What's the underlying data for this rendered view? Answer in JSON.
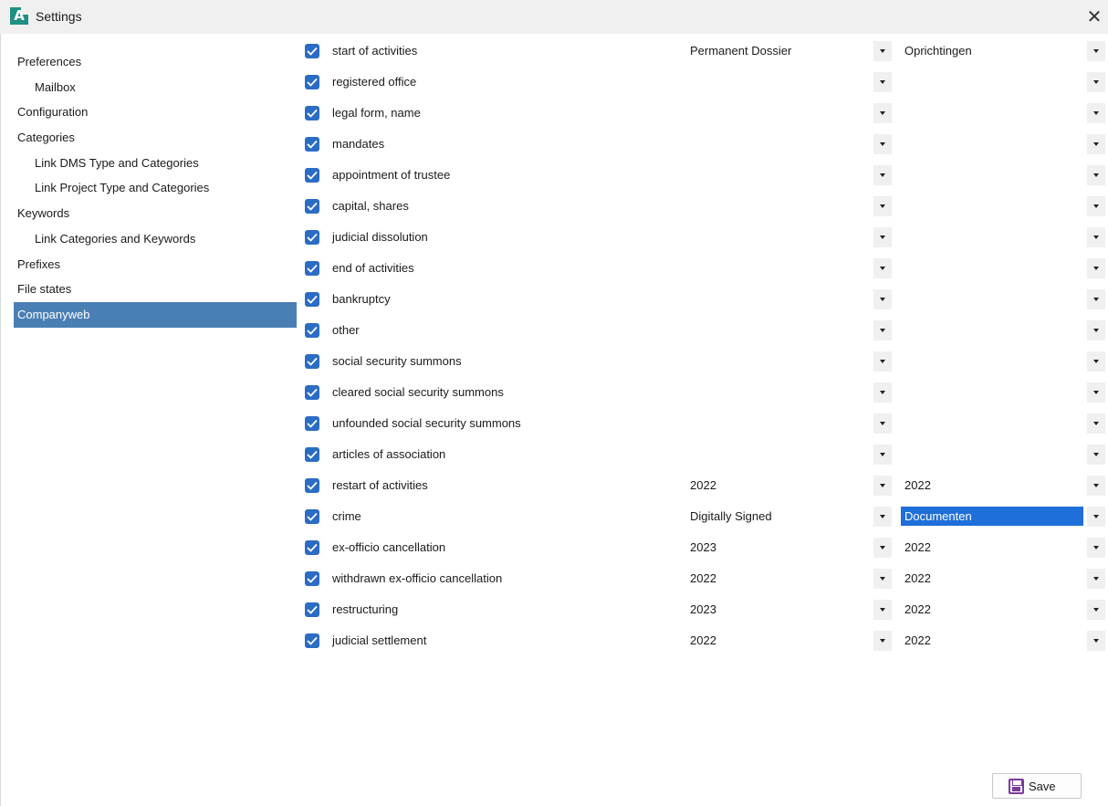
{
  "window": {
    "title": "Settings",
    "app_icon": "A",
    "close_glyph": "✕"
  },
  "sidebar": {
    "items": [
      {
        "label": "Preferences",
        "level": 0,
        "active": false
      },
      {
        "label": "Mailbox",
        "level": 1,
        "active": false
      },
      {
        "label": "Configuration",
        "level": 0,
        "active": false
      },
      {
        "label": "Categories",
        "level": 0,
        "active": false
      },
      {
        "label": "Link DMS Type and Categories",
        "level": 1,
        "active": false
      },
      {
        "label": "Link Project Type and Categories",
        "level": 1,
        "active": false
      },
      {
        "label": "Keywords",
        "level": 0,
        "active": false
      },
      {
        "label": "Link Categories and Keywords",
        "level": 1,
        "active": false
      },
      {
        "label": "Prefixes",
        "level": 0,
        "active": false
      },
      {
        "label": "File states",
        "level": 0,
        "active": false
      },
      {
        "label": "Companyweb",
        "level": 0,
        "active": true
      }
    ]
  },
  "rows": [
    {
      "label": "start of activities",
      "checked": true,
      "value1": "Permanent Dossier",
      "value2": "Oprichtingen",
      "selected": false
    },
    {
      "label": "registered office",
      "checked": true,
      "value1": "",
      "value2": "",
      "selected": false
    },
    {
      "label": "legal form, name",
      "checked": true,
      "value1": "",
      "value2": "",
      "selected": false
    },
    {
      "label": "mandates",
      "checked": true,
      "value1": "",
      "value2": "",
      "selected": false
    },
    {
      "label": "appointment of trustee",
      "checked": true,
      "value1": "",
      "value2": "",
      "selected": false
    },
    {
      "label": "capital, shares",
      "checked": true,
      "value1": "",
      "value2": "",
      "selected": false
    },
    {
      "label": "judicial dissolution",
      "checked": true,
      "value1": "",
      "value2": "",
      "selected": false
    },
    {
      "label": "end of activities",
      "checked": true,
      "value1": "",
      "value2": "",
      "selected": false
    },
    {
      "label": "bankruptcy",
      "checked": true,
      "value1": "",
      "value2": "",
      "selected": false
    },
    {
      "label": "other",
      "checked": true,
      "value1": "",
      "value2": "",
      "selected": false
    },
    {
      "label": "social security summons",
      "checked": true,
      "value1": "",
      "value2": "",
      "selected": false
    },
    {
      "label": "cleared social security summons",
      "checked": true,
      "value1": "",
      "value2": "",
      "selected": false
    },
    {
      "label": "unfounded social security summons",
      "checked": true,
      "value1": "",
      "value2": "",
      "selected": false
    },
    {
      "label": "articles of association",
      "checked": true,
      "value1": "",
      "value2": "",
      "selected": false
    },
    {
      "label": "restart of activities",
      "checked": true,
      "value1": "2022",
      "value2": "2022",
      "selected": false
    },
    {
      "label": "crime",
      "checked": true,
      "value1": "Digitally Signed",
      "value2": "Documenten",
      "selected": true
    },
    {
      "label": "ex-officio cancellation",
      "checked": true,
      "value1": "2023",
      "value2": "2022",
      "selected": false
    },
    {
      "label": "withdrawn ex-officio cancellation",
      "checked": true,
      "value1": "2022",
      "value2": "2022",
      "selected": false
    },
    {
      "label": "restructuring",
      "checked": true,
      "value1": "2023",
      "value2": "2022",
      "selected": false
    },
    {
      "label": "judicial settlement",
      "checked": true,
      "value1": "2022",
      "value2": "2022",
      "selected": false
    }
  ],
  "footer": {
    "save_label": "Save"
  },
  "colors": {
    "accent": "#4a7fb5",
    "checkbox": "#2b6cc4",
    "selection": "#1e6fd9",
    "app_icon": "#1f8f83",
    "save_icon": "#7a3a9a"
  }
}
